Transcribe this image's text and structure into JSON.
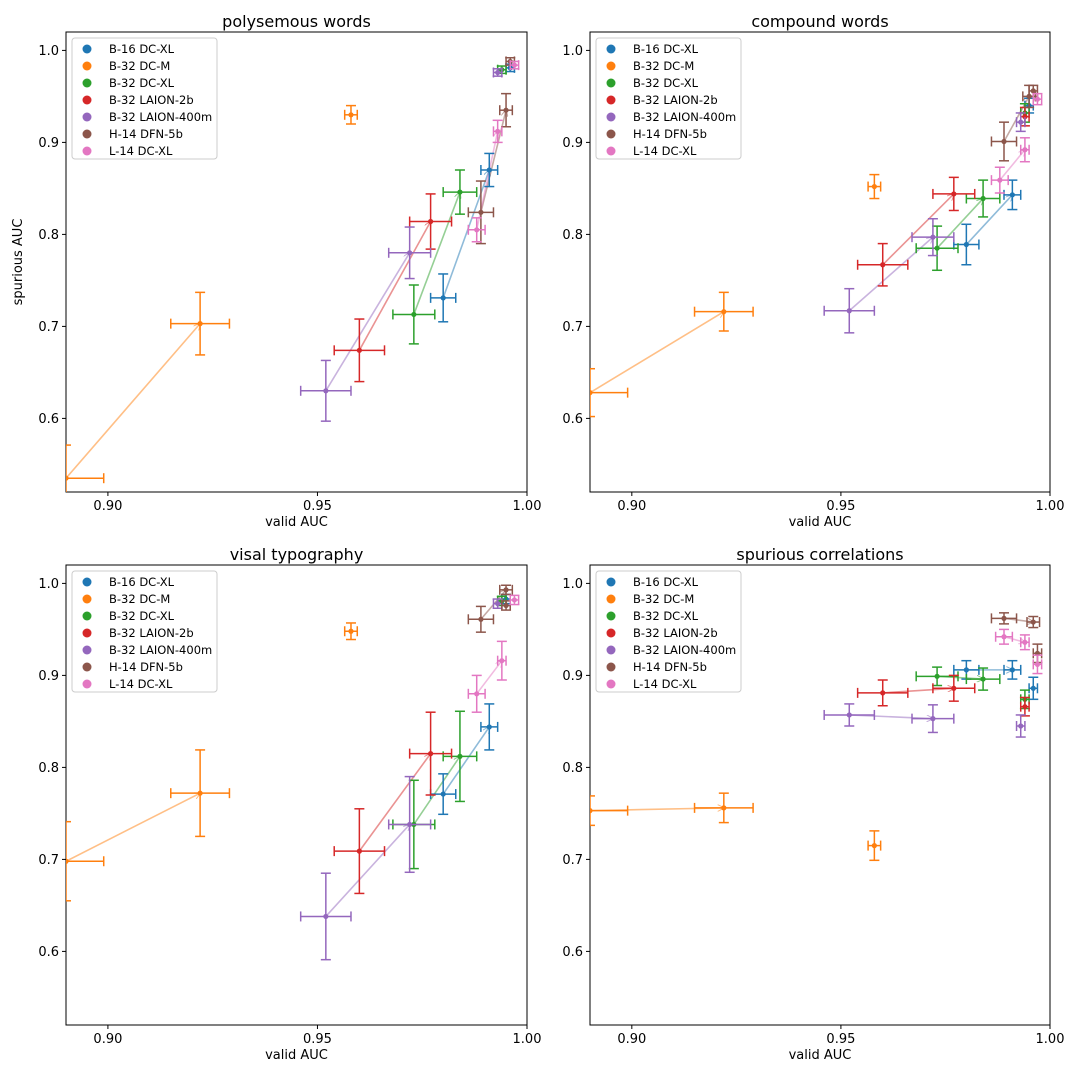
{
  "legend_labels": [
    "B-16 DC-XL",
    "B-32 DC-M",
    "B-32 DC-XL",
    "B-32 LAION-2b",
    "B-32 LAION-400m",
    "H-14 DFN-5b",
    "L-14 DC-XL"
  ],
  "colors": {
    "B-16 DC-XL": "#1f77b4",
    "B-32 DC-M": "#ff7f0e",
    "B-32 DC-XL": "#2ca02c",
    "B-32 LAION-2b": "#d62728",
    "B-32 LAION-400m": "#9467bd",
    "H-14 DFN-5b": "#8c564b",
    "L-14 DC-XL": "#e377c2"
  },
  "chart_data": [
    {
      "type": "scatter",
      "title": "polysemous words",
      "xlabel": "valid AUC",
      "ylabel": "spurious AUC",
      "xlim": [
        0.89,
        1.0
      ],
      "ylim": [
        0.52,
        1.02
      ],
      "xticks": [
        "0.90",
        "0.95",
        "1.00"
      ],
      "yticks": [
        "0.6",
        "0.7",
        "0.8",
        "0.9",
        "1.0"
      ],
      "legend_position": "upper-left",
      "points": [
        {
          "series": "B-16 DC-XL",
          "x": 0.98,
          "y": 0.731,
          "xerr": 0.003,
          "yerr": 0.026,
          "arrow_to": [
            0.991,
            0.87
          ]
        },
        {
          "series": "B-16 DC-XL",
          "x": 0.991,
          "y": 0.87,
          "xerr": 0.002,
          "yerr": 0.018
        },
        {
          "series": "B-16 DC-XL",
          "x": 0.996,
          "y": 0.981,
          "xerr": 0.001,
          "yerr": 0.004
        },
        {
          "series": "B-32 DC-M",
          "x": 0.89,
          "y": 0.535,
          "xerr": 0.009,
          "yerr": 0.036,
          "arrow_to": [
            0.922,
            0.703
          ]
        },
        {
          "series": "B-32 DC-M",
          "x": 0.922,
          "y": 0.703,
          "xerr": 0.007,
          "yerr": 0.034
        },
        {
          "series": "B-32 DC-M",
          "x": 0.958,
          "y": 0.93,
          "xerr": 0.0015,
          "yerr": 0.01
        },
        {
          "series": "B-32 DC-XL",
          "x": 0.973,
          "y": 0.713,
          "xerr": 0.005,
          "yerr": 0.032,
          "arrow_to": [
            0.984,
            0.846
          ]
        },
        {
          "series": "B-32 DC-XL",
          "x": 0.984,
          "y": 0.846,
          "xerr": 0.004,
          "yerr": 0.024
        },
        {
          "series": "B-32 DC-XL",
          "x": 0.994,
          "y": 0.979,
          "xerr": 0.001,
          "yerr": 0.004
        },
        {
          "series": "B-32 LAION-2b",
          "x": 0.96,
          "y": 0.674,
          "xerr": 0.006,
          "yerr": 0.034,
          "arrow_to": [
            0.977,
            0.814
          ]
        },
        {
          "series": "B-32 LAION-2b",
          "x": 0.977,
          "y": 0.814,
          "xerr": 0.005,
          "yerr": 0.03
        },
        {
          "series": "B-32 LAION-400m",
          "x": 0.952,
          "y": 0.63,
          "xerr": 0.006,
          "yerr": 0.033,
          "arrow_to": [
            0.972,
            0.78
          ]
        },
        {
          "series": "B-32 LAION-400m",
          "x": 0.972,
          "y": 0.78,
          "xerr": 0.005,
          "yerr": 0.028
        },
        {
          "series": "B-32 LAION-400m",
          "x": 0.993,
          "y": 0.976,
          "xerr": 0.001,
          "yerr": 0.004
        },
        {
          "series": "H-14 DFN-5b",
          "x": 0.989,
          "y": 0.824,
          "xerr": 0.003,
          "yerr": 0.034,
          "arrow_to": [
            0.995,
            0.935
          ]
        },
        {
          "series": "H-14 DFN-5b",
          "x": 0.995,
          "y": 0.935,
          "xerr": 0.0015,
          "yerr": 0.018
        },
        {
          "series": "H-14 DFN-5b",
          "x": 0.996,
          "y": 0.988,
          "xerr": 0.001,
          "yerr": 0.004
        },
        {
          "series": "L-14 DC-XL",
          "x": 0.988,
          "y": 0.805,
          "xerr": 0.002,
          "yerr": 0.013,
          "arrow_to": [
            0.993,
            0.912
          ]
        },
        {
          "series": "L-14 DC-XL",
          "x": 0.993,
          "y": 0.912,
          "xerr": 0.001,
          "yerr": 0.012
        },
        {
          "series": "L-14 DC-XL",
          "x": 0.997,
          "y": 0.984,
          "xerr": 0.001,
          "yerr": 0.004
        }
      ]
    },
    {
      "type": "scatter",
      "title": "compound words",
      "xlabel": "valid AUC",
      "ylabel": "",
      "xlim": [
        0.89,
        1.0
      ],
      "ylim": [
        0.52,
        1.02
      ],
      "xticks": [
        "0.90",
        "0.95",
        "1.00"
      ],
      "yticks": [
        "0.6",
        "0.7",
        "0.8",
        "0.9",
        "1.0"
      ],
      "legend_position": "upper-left",
      "points": [
        {
          "series": "B-16 DC-XL",
          "x": 0.98,
          "y": 0.789,
          "xerr": 0.003,
          "yerr": 0.022,
          "arrow_to": [
            0.991,
            0.843
          ]
        },
        {
          "series": "B-16 DC-XL",
          "x": 0.991,
          "y": 0.843,
          "xerr": 0.002,
          "yerr": 0.016
        },
        {
          "series": "B-16 DC-XL",
          "x": 0.995,
          "y": 0.94,
          "xerr": 0.001,
          "yerr": 0.008
        },
        {
          "series": "B-32 DC-M",
          "x": 0.89,
          "y": 0.628,
          "xerr": 0.009,
          "yerr": 0.026,
          "arrow_to": [
            0.922,
            0.716
          ]
        },
        {
          "series": "B-32 DC-M",
          "x": 0.922,
          "y": 0.716,
          "xerr": 0.007,
          "yerr": 0.021
        },
        {
          "series": "B-32 DC-M",
          "x": 0.958,
          "y": 0.852,
          "xerr": 0.0015,
          "yerr": 0.013
        },
        {
          "series": "B-32 DC-XL",
          "x": 0.973,
          "y": 0.785,
          "xerr": 0.005,
          "yerr": 0.024,
          "arrow_to": [
            0.984,
            0.839
          ]
        },
        {
          "series": "B-32 DC-XL",
          "x": 0.984,
          "y": 0.839,
          "xerr": 0.004,
          "yerr": 0.02
        },
        {
          "series": "B-32 DC-XL",
          "x": 0.994,
          "y": 0.932,
          "xerr": 0.001,
          "yerr": 0.01
        },
        {
          "series": "B-32 LAION-2b",
          "x": 0.96,
          "y": 0.767,
          "xerr": 0.006,
          "yerr": 0.023,
          "arrow_to": [
            0.977,
            0.844
          ]
        },
        {
          "series": "B-32 LAION-2b",
          "x": 0.977,
          "y": 0.844,
          "xerr": 0.005,
          "yerr": 0.018
        },
        {
          "series": "B-32 LAION-2b",
          "x": 0.994,
          "y": 0.928,
          "xerr": 0.001,
          "yerr": 0.01
        },
        {
          "series": "B-32 LAION-400m",
          "x": 0.952,
          "y": 0.717,
          "xerr": 0.006,
          "yerr": 0.024,
          "arrow_to": [
            0.972,
            0.797
          ]
        },
        {
          "series": "B-32 LAION-400m",
          "x": 0.972,
          "y": 0.797,
          "xerr": 0.005,
          "yerr": 0.02
        },
        {
          "series": "B-32 LAION-400m",
          "x": 0.993,
          "y": 0.922,
          "xerr": 0.001,
          "yerr": 0.01
        },
        {
          "series": "H-14 DFN-5b",
          "x": 0.989,
          "y": 0.901,
          "xerr": 0.003,
          "yerr": 0.021,
          "arrow_to": [
            0.995,
            0.95
          ]
        },
        {
          "series": "H-14 DFN-5b",
          "x": 0.995,
          "y": 0.95,
          "xerr": 0.0015,
          "yerr": 0.012
        },
        {
          "series": "H-14 DFN-5b",
          "x": 0.996,
          "y": 0.956,
          "xerr": 0.001,
          "yerr": 0.006
        },
        {
          "series": "L-14 DC-XL",
          "x": 0.988,
          "y": 0.859,
          "xerr": 0.002,
          "yerr": 0.014,
          "arrow_to": [
            0.994,
            0.892
          ]
        },
        {
          "series": "L-14 DC-XL",
          "x": 0.994,
          "y": 0.892,
          "xerr": 0.001,
          "yerr": 0.013
        },
        {
          "series": "L-14 DC-XL",
          "x": 0.997,
          "y": 0.947,
          "xerr": 0.001,
          "yerr": 0.006
        }
      ]
    },
    {
      "type": "scatter",
      "title": "visal typography",
      "xlabel": "valid AUC",
      "ylabel": "",
      "xlim": [
        0.89,
        1.0
      ],
      "ylim": [
        0.52,
        1.02
      ],
      "xticks": [
        "0.90",
        "0.95",
        "1.00"
      ],
      "yticks": [
        "0.6",
        "0.7",
        "0.8",
        "0.9",
        "1.0"
      ],
      "legend_position": "upper-left",
      "points": [
        {
          "series": "B-16 DC-XL",
          "x": 0.98,
          "y": 0.771,
          "xerr": 0.003,
          "yerr": 0.022,
          "arrow_to": [
            0.991,
            0.844
          ]
        },
        {
          "series": "B-16 DC-XL",
          "x": 0.991,
          "y": 0.844,
          "xerr": 0.002,
          "yerr": 0.025
        },
        {
          "series": "B-16 DC-XL",
          "x": 0.995,
          "y": 0.983,
          "xerr": 0.001,
          "yerr": 0.005
        },
        {
          "series": "B-32 DC-M",
          "x": 0.89,
          "y": 0.698,
          "xerr": 0.009,
          "yerr": 0.043,
          "arrow_to": [
            0.922,
            0.772
          ]
        },
        {
          "series": "B-32 DC-M",
          "x": 0.922,
          "y": 0.772,
          "xerr": 0.007,
          "yerr": 0.047
        },
        {
          "series": "B-32 DC-M",
          "x": 0.958,
          "y": 0.948,
          "xerr": 0.0015,
          "yerr": 0.009
        },
        {
          "series": "B-32 DC-XL",
          "x": 0.973,
          "y": 0.738,
          "xerr": 0.005,
          "yerr": 0.048,
          "arrow_to": [
            0.984,
            0.812
          ]
        },
        {
          "series": "B-32 DC-XL",
          "x": 0.984,
          "y": 0.812,
          "xerr": 0.004,
          "yerr": 0.049
        },
        {
          "series": "B-32 DC-XL",
          "x": 0.994,
          "y": 0.981,
          "xerr": 0.001,
          "yerr": 0.005
        },
        {
          "series": "B-32 LAION-2b",
          "x": 0.96,
          "y": 0.709,
          "xerr": 0.006,
          "yerr": 0.046,
          "arrow_to": [
            0.977,
            0.815
          ]
        },
        {
          "series": "B-32 LAION-2b",
          "x": 0.977,
          "y": 0.815,
          "xerr": 0.005,
          "yerr": 0.045
        },
        {
          "series": "B-32 LAION-400m",
          "x": 0.952,
          "y": 0.638,
          "xerr": 0.006,
          "yerr": 0.047,
          "arrow_to": [
            0.972,
            0.738
          ]
        },
        {
          "series": "B-32 LAION-400m",
          "x": 0.972,
          "y": 0.738,
          "xerr": 0.005,
          "yerr": 0.052
        },
        {
          "series": "B-32 LAION-400m",
          "x": 0.993,
          "y": 0.978,
          "xerr": 0.001,
          "yerr": 0.005
        },
        {
          "series": "H-14 DFN-5b",
          "x": 0.989,
          "y": 0.961,
          "xerr": 0.003,
          "yerr": 0.014,
          "arrow_to": [
            0.995,
            0.993
          ]
        },
        {
          "series": "H-14 DFN-5b",
          "x": 0.995,
          "y": 0.993,
          "xerr": 0.0015,
          "yerr": 0.005
        },
        {
          "series": "H-14 DFN-5b",
          "x": 0.995,
          "y": 0.976,
          "xerr": 0.001,
          "yerr": 0.005
        },
        {
          "series": "L-14 DC-XL",
          "x": 0.988,
          "y": 0.88,
          "xerr": 0.002,
          "yerr": 0.02,
          "arrow_to": [
            0.994,
            0.916
          ]
        },
        {
          "series": "L-14 DC-XL",
          "x": 0.994,
          "y": 0.916,
          "xerr": 0.001,
          "yerr": 0.021
        },
        {
          "series": "L-14 DC-XL",
          "x": 0.997,
          "y": 0.982,
          "xerr": 0.001,
          "yerr": 0.005
        }
      ]
    },
    {
      "type": "scatter",
      "title": "spurious correlations",
      "xlabel": "valid AUC",
      "ylabel": "",
      "xlim": [
        0.89,
        1.0
      ],
      "ylim": [
        0.52,
        1.02
      ],
      "xticks": [
        "0.90",
        "0.95",
        "1.00"
      ],
      "yticks": [
        "0.6",
        "0.7",
        "0.8",
        "0.9",
        "1.0"
      ],
      "legend_position": "upper-left",
      "points": [
        {
          "series": "B-16 DC-XL",
          "x": 0.98,
          "y": 0.906,
          "xerr": 0.003,
          "yerr": 0.01,
          "arrow_to": [
            0.991,
            0.906
          ]
        },
        {
          "series": "B-16 DC-XL",
          "x": 0.991,
          "y": 0.906,
          "xerr": 0.002,
          "yerr": 0.01
        },
        {
          "series": "B-16 DC-XL",
          "x": 0.996,
          "y": 0.886,
          "xerr": 0.001,
          "yerr": 0.012
        },
        {
          "series": "B-32 DC-M",
          "x": 0.89,
          "y": 0.753,
          "xerr": 0.009,
          "yerr": 0.016,
          "arrow_to": [
            0.922,
            0.756
          ]
        },
        {
          "series": "B-32 DC-M",
          "x": 0.922,
          "y": 0.756,
          "xerr": 0.007,
          "yerr": 0.016
        },
        {
          "series": "B-32 DC-M",
          "x": 0.958,
          "y": 0.715,
          "xerr": 0.0015,
          "yerr": 0.016
        },
        {
          "series": "B-32 DC-XL",
          "x": 0.973,
          "y": 0.899,
          "xerr": 0.005,
          "yerr": 0.01,
          "arrow_to": [
            0.984,
            0.896
          ]
        },
        {
          "series": "B-32 DC-XL",
          "x": 0.984,
          "y": 0.896,
          "xerr": 0.004,
          "yerr": 0.012
        },
        {
          "series": "B-32 DC-XL",
          "x": 0.994,
          "y": 0.874,
          "xerr": 0.001,
          "yerr": 0.01
        },
        {
          "series": "B-32 LAION-2b",
          "x": 0.96,
          "y": 0.881,
          "xerr": 0.006,
          "yerr": 0.014,
          "arrow_to": [
            0.977,
            0.886
          ]
        },
        {
          "series": "B-32 LAION-2b",
          "x": 0.977,
          "y": 0.886,
          "xerr": 0.005,
          "yerr": 0.014
        },
        {
          "series": "B-32 LAION-2b",
          "x": 0.994,
          "y": 0.866,
          "xerr": 0.001,
          "yerr": 0.01
        },
        {
          "series": "B-32 LAION-400m",
          "x": 0.952,
          "y": 0.857,
          "xerr": 0.006,
          "yerr": 0.012,
          "arrow_to": [
            0.972,
            0.853
          ]
        },
        {
          "series": "B-32 LAION-400m",
          "x": 0.972,
          "y": 0.853,
          "xerr": 0.005,
          "yerr": 0.015
        },
        {
          "series": "B-32 LAION-400m",
          "x": 0.993,
          "y": 0.845,
          "xerr": 0.001,
          "yerr": 0.012
        },
        {
          "series": "H-14 DFN-5b",
          "x": 0.989,
          "y": 0.962,
          "xerr": 0.003,
          "yerr": 0.006,
          "arrow_to": [
            0.996,
            0.958
          ]
        },
        {
          "series": "H-14 DFN-5b",
          "x": 0.996,
          "y": 0.958,
          "xerr": 0.0015,
          "yerr": 0.006
        },
        {
          "series": "H-14 DFN-5b",
          "x": 0.997,
          "y": 0.924,
          "xerr": 0.001,
          "yerr": 0.01
        },
        {
          "series": "L-14 DC-XL",
          "x": 0.989,
          "y": 0.942,
          "xerr": 0.002,
          "yerr": 0.008,
          "arrow_to": [
            0.994,
            0.936
          ]
        },
        {
          "series": "L-14 DC-XL",
          "x": 0.994,
          "y": 0.936,
          "xerr": 0.001,
          "yerr": 0.008
        },
        {
          "series": "L-14 DC-XL",
          "x": 0.997,
          "y": 0.912,
          "xerr": 0.001,
          "yerr": 0.01
        }
      ]
    }
  ]
}
